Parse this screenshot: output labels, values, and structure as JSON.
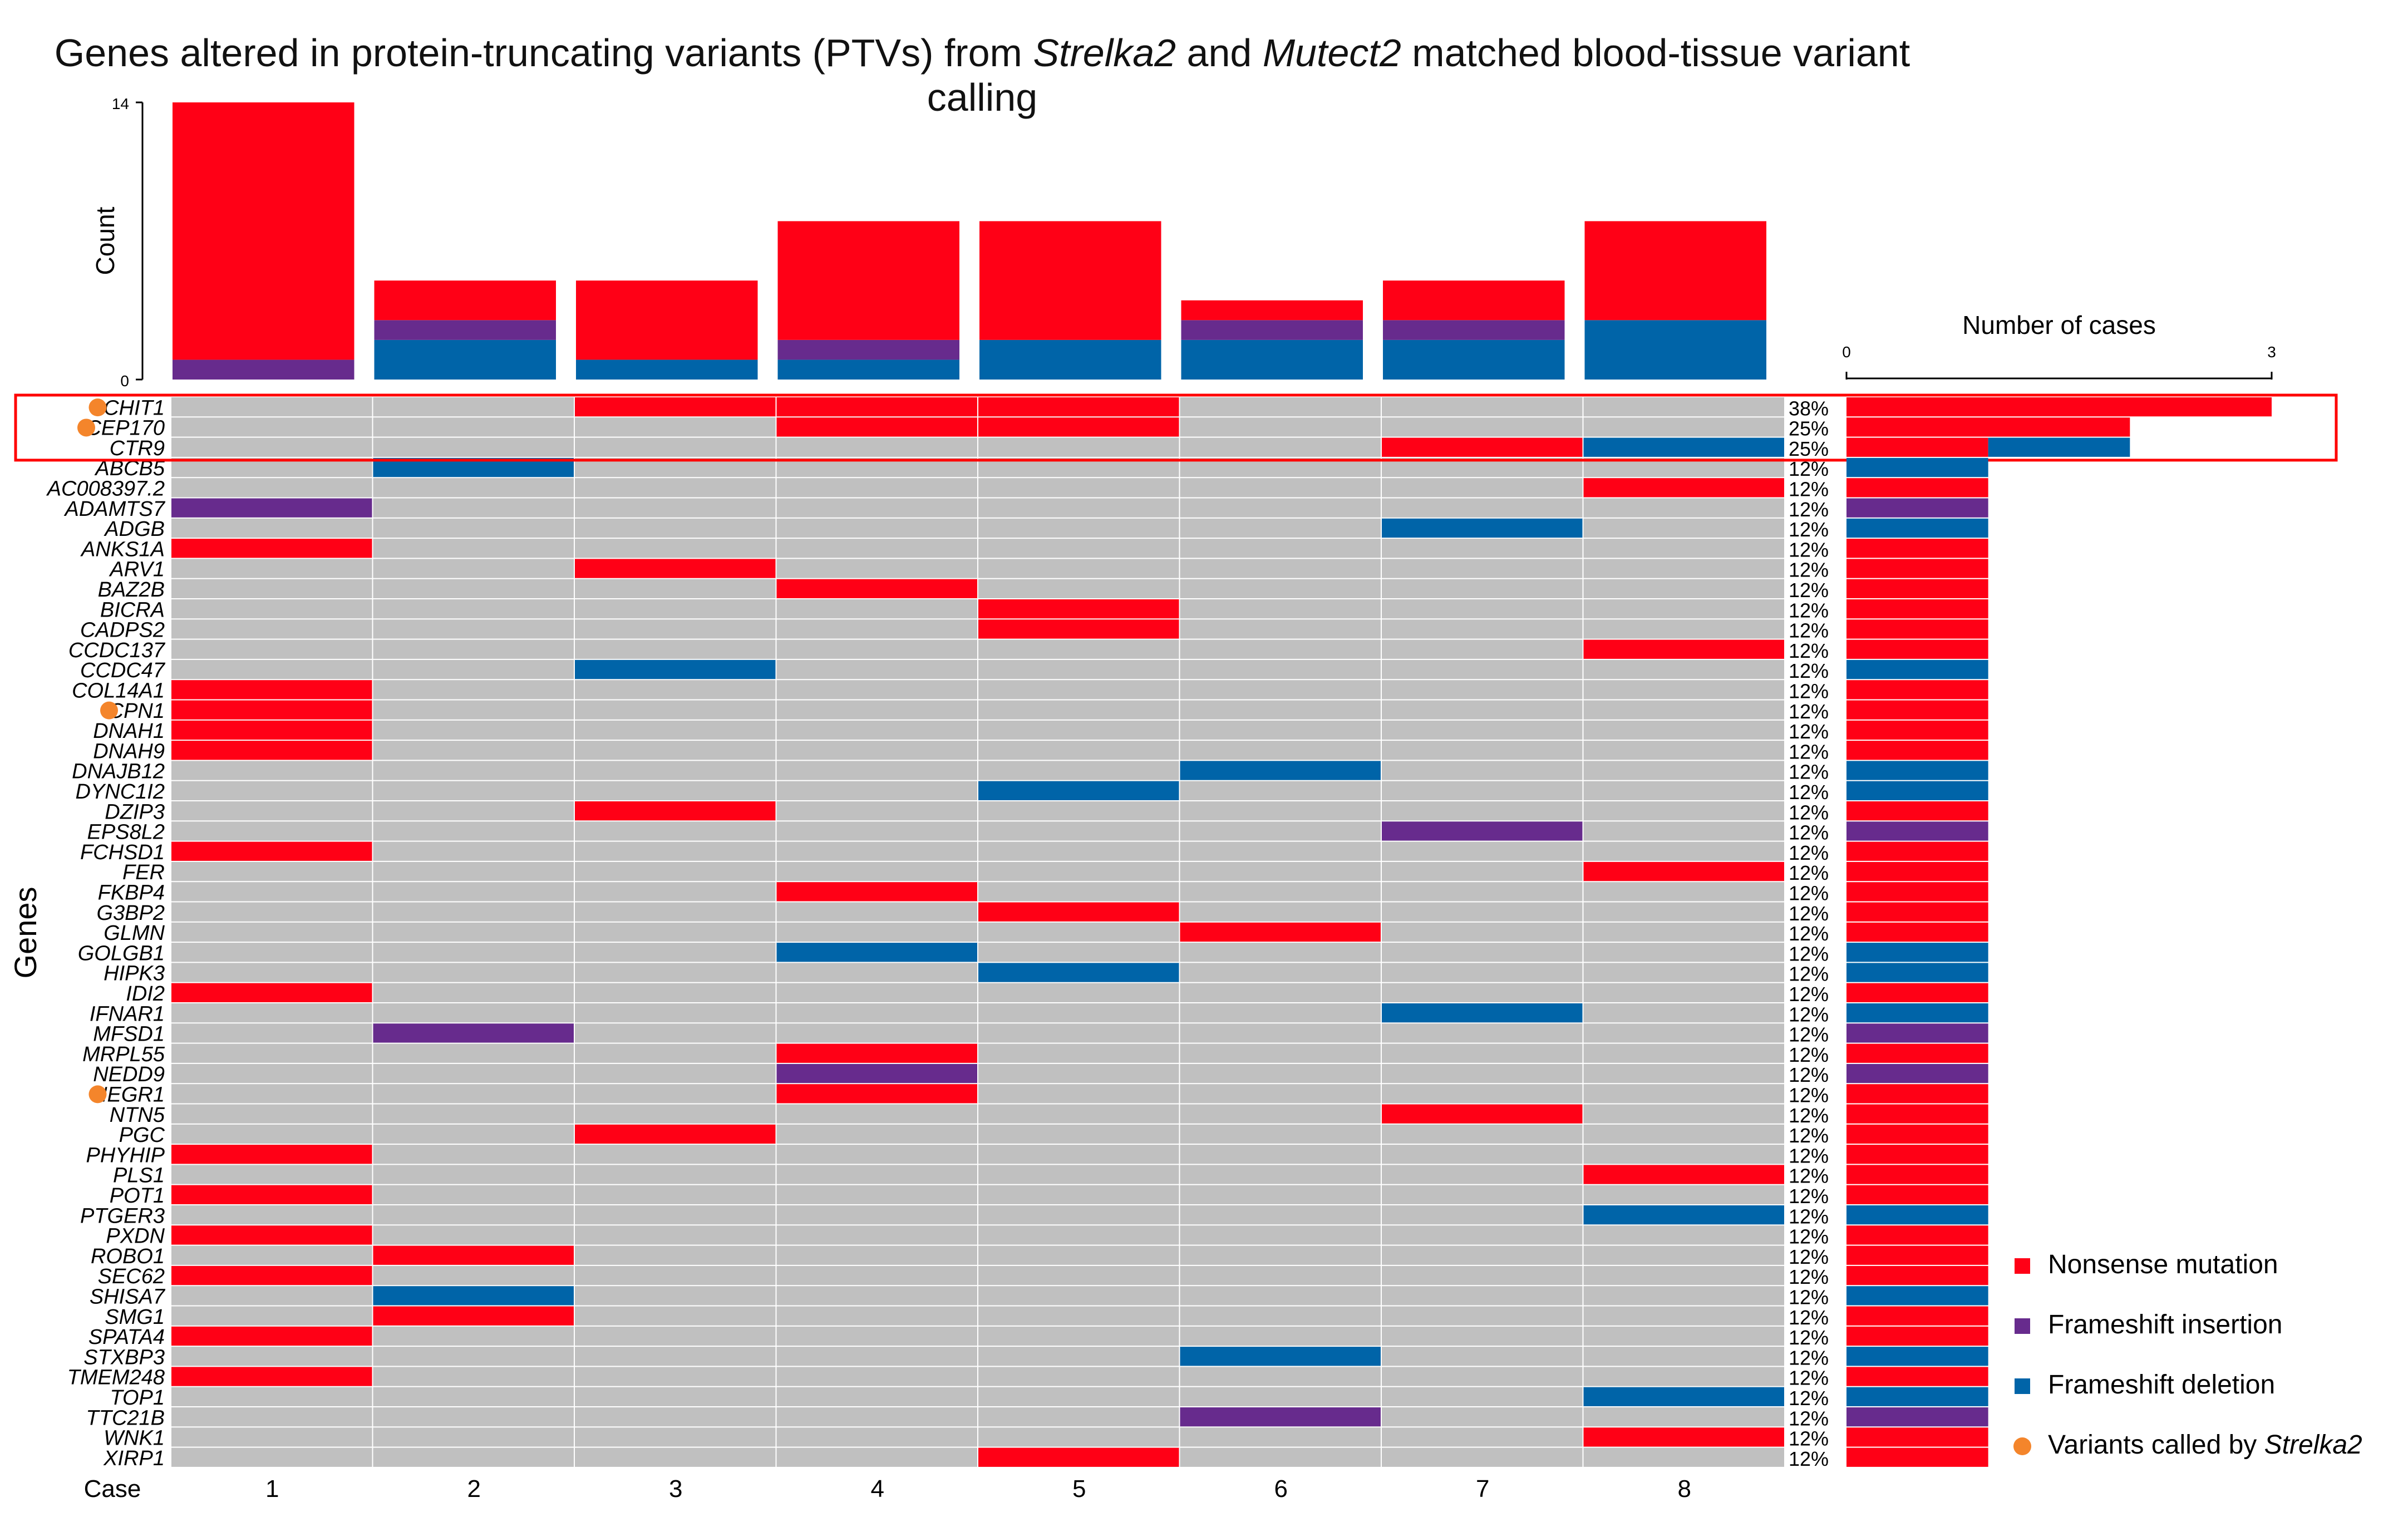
{
  "title_parts": [
    {
      "t": "Genes altered in protein-truncating variants (PTVs) from ",
      "i": false
    },
    {
      "t": "Strelka2",
      "i": true
    },
    {
      "t": " and ",
      "i": false
    },
    {
      "t": "Mutect2",
      "i": true
    },
    {
      "t": " matched blood-tissue variant calling",
      "i": false
    }
  ],
  "colors": {
    "nonsense": "#ff0016",
    "fs_ins": "#672b8d",
    "fs_del": "#0064a8",
    "empty": "#c0c0c0",
    "strelka": "#f4852b",
    "highlight": "#ff0000"
  },
  "legend": [
    {
      "key": "nonsense",
      "label_parts": [
        {
          "t": "Nonsense mutation",
          "i": false
        }
      ]
    },
    {
      "key": "fs_ins",
      "label_parts": [
        {
          "t": "Frameshift insertion",
          "i": false
        }
      ]
    },
    {
      "key": "fs_del",
      "label_parts": [
        {
          "t": "Frameshift deletion",
          "i": false
        }
      ]
    },
    {
      "key": "strelka",
      "dot": true,
      "label_parts": [
        {
          "t": "Variants called by ",
          "i": false
        },
        {
          "t": "Strelka2",
          "i": true
        }
      ]
    }
  ],
  "chart_data": [
    {
      "type": "bar",
      "name": "case-count-bars",
      "ylabel": "Count",
      "ylim": [
        0,
        14
      ],
      "yticks": [
        "0",
        "14"
      ],
      "categories": [
        "1",
        "2",
        "3",
        "4",
        "5",
        "6",
        "7",
        "8"
      ],
      "series": [
        {
          "name": "Frameshift deletion",
          "key": "fs_del",
          "values": [
            0,
            2,
            1,
            1,
            2,
            2,
            2,
            3
          ]
        },
        {
          "name": "Frameshift insertion",
          "key": "fs_ins",
          "values": [
            1,
            1,
            0,
            1,
            0,
            1,
            1,
            0
          ]
        },
        {
          "name": "Nonsense mutation",
          "key": "nonsense",
          "values": [
            13,
            2,
            4,
            6,
            6,
            1,
            2,
            5
          ]
        }
      ]
    },
    {
      "type": "heatmap",
      "name": "oncoprint",
      "ylabel": "Genes",
      "xlabel": "Case",
      "cases": [
        "1",
        "2",
        "3",
        "4",
        "5",
        "6",
        "7",
        "8"
      ],
      "highlighted_genes": [
        "CHIT1",
        "CEP170",
        "CTR9"
      ],
      "rows": [
        {
          "gene": "CHIT1",
          "pct": "38%",
          "strelka": true,
          "cells": [
            [
              "nonsense",
              3
            ],
            [
              "nonsense",
              4
            ],
            [
              "nonsense",
              5
            ]
          ]
        },
        {
          "gene": "CEP170",
          "pct": "25%",
          "strelka": true,
          "cells": [
            [
              "nonsense",
              4
            ],
            [
              "nonsense",
              5
            ]
          ]
        },
        {
          "gene": "CTR9",
          "pct": "25%",
          "cells": [
            [
              "nonsense",
              7
            ],
            [
              "fs_del",
              8
            ]
          ]
        },
        {
          "gene": "ABCB5",
          "pct": "12%",
          "cells": [
            [
              "fs_del",
              2
            ]
          ]
        },
        {
          "gene": "AC008397.2",
          "pct": "12%",
          "cells": [
            [
              "nonsense",
              8
            ]
          ]
        },
        {
          "gene": "ADAMTS7",
          "pct": "12%",
          "cells": [
            [
              "fs_ins",
              1
            ]
          ]
        },
        {
          "gene": "ADGB",
          "pct": "12%",
          "cells": [
            [
              "fs_del",
              7
            ]
          ]
        },
        {
          "gene": "ANKS1A",
          "pct": "12%",
          "cells": [
            [
              "nonsense",
              1
            ]
          ]
        },
        {
          "gene": "ARV1",
          "pct": "12%",
          "cells": [
            [
              "nonsense",
              3
            ]
          ]
        },
        {
          "gene": "BAZ2B",
          "pct": "12%",
          "cells": [
            [
              "nonsense",
              4
            ]
          ]
        },
        {
          "gene": "BICRA",
          "pct": "12%",
          "cells": [
            [
              "nonsense",
              5
            ]
          ]
        },
        {
          "gene": "CADPS2",
          "pct": "12%",
          "cells": [
            [
              "nonsense",
              5
            ]
          ]
        },
        {
          "gene": "CCDC137",
          "pct": "12%",
          "cells": [
            [
              "nonsense",
              8
            ]
          ]
        },
        {
          "gene": "CCDC47",
          "pct": "12%",
          "cells": [
            [
              "fs_del",
              3
            ]
          ]
        },
        {
          "gene": "COL14A1",
          "pct": "12%",
          "cells": [
            [
              "nonsense",
              1
            ]
          ]
        },
        {
          "gene": "CPN1",
          "pct": "12%",
          "strelka": true,
          "cells": [
            [
              "nonsense",
              1
            ]
          ]
        },
        {
          "gene": "DNAH1",
          "pct": "12%",
          "cells": [
            [
              "nonsense",
              1
            ]
          ]
        },
        {
          "gene": "DNAH9",
          "pct": "12%",
          "cells": [
            [
              "nonsense",
              1
            ]
          ]
        },
        {
          "gene": "DNAJB12",
          "pct": "12%",
          "cells": [
            [
              "fs_del",
              6
            ]
          ]
        },
        {
          "gene": "DYNC1I2",
          "pct": "12%",
          "cells": [
            [
              "fs_del",
              5
            ]
          ]
        },
        {
          "gene": "DZIP3",
          "pct": "12%",
          "cells": [
            [
              "nonsense",
              3
            ]
          ]
        },
        {
          "gene": "EPS8L2",
          "pct": "12%",
          "cells": [
            [
              "fs_ins",
              7
            ]
          ]
        },
        {
          "gene": "FCHSD1",
          "pct": "12%",
          "cells": [
            [
              "nonsense",
              1
            ]
          ]
        },
        {
          "gene": "FER",
          "pct": "12%",
          "cells": [
            [
              "nonsense",
              8
            ]
          ]
        },
        {
          "gene": "FKBP4",
          "pct": "12%",
          "cells": [
            [
              "nonsense",
              4
            ]
          ]
        },
        {
          "gene": "G3BP2",
          "pct": "12%",
          "cells": [
            [
              "nonsense",
              5
            ]
          ]
        },
        {
          "gene": "GLMN",
          "pct": "12%",
          "cells": [
            [
              "nonsense",
              6
            ]
          ]
        },
        {
          "gene": "GOLGB1",
          "pct": "12%",
          "cells": [
            [
              "fs_del",
              4
            ]
          ]
        },
        {
          "gene": "HIPK3",
          "pct": "12%",
          "cells": [
            [
              "fs_del",
              5
            ]
          ]
        },
        {
          "gene": "IDI2",
          "pct": "12%",
          "cells": [
            [
              "nonsense",
              1
            ]
          ]
        },
        {
          "gene": "IFNAR1",
          "pct": "12%",
          "cells": [
            [
              "fs_del",
              7
            ]
          ]
        },
        {
          "gene": "MFSD1",
          "pct": "12%",
          "cells": [
            [
              "fs_ins",
              2
            ]
          ]
        },
        {
          "gene": "MRPL55",
          "pct": "12%",
          "cells": [
            [
              "nonsense",
              4
            ]
          ]
        },
        {
          "gene": "NEDD9",
          "pct": "12%",
          "cells": [
            [
              "fs_ins",
              4
            ]
          ]
        },
        {
          "gene": "NEGR1",
          "pct": "12%",
          "strelka": true,
          "cells": [
            [
              "nonsense",
              4
            ]
          ]
        },
        {
          "gene": "NTN5",
          "pct": "12%",
          "cells": [
            [
              "nonsense",
              7
            ]
          ]
        },
        {
          "gene": "PGC",
          "pct": "12%",
          "cells": [
            [
              "nonsense",
              3
            ]
          ]
        },
        {
          "gene": "PHYHIP",
          "pct": "12%",
          "cells": [
            [
              "nonsense",
              1
            ]
          ]
        },
        {
          "gene": "PLS1",
          "pct": "12%",
          "cells": [
            [
              "nonsense",
              8
            ]
          ]
        },
        {
          "gene": "POT1",
          "pct": "12%",
          "cells": [
            [
              "nonsense",
              1
            ]
          ]
        },
        {
          "gene": "PTGER3",
          "pct": "12%",
          "cells": [
            [
              "fs_del",
              8
            ]
          ]
        },
        {
          "gene": "PXDN",
          "pct": "12%",
          "cells": [
            [
              "nonsense",
              1
            ]
          ]
        },
        {
          "gene": "ROBO1",
          "pct": "12%",
          "cells": [
            [
              "nonsense",
              2
            ]
          ]
        },
        {
          "gene": "SEC62",
          "pct": "12%",
          "cells": [
            [
              "nonsense",
              1
            ]
          ]
        },
        {
          "gene": "SHISA7",
          "pct": "12%",
          "cells": [
            [
              "fs_del",
              2
            ]
          ]
        },
        {
          "gene": "SMG1",
          "pct": "12%",
          "cells": [
            [
              "nonsense",
              2
            ]
          ]
        },
        {
          "gene": "SPATA4",
          "pct": "12%",
          "cells": [
            [
              "nonsense",
              1
            ]
          ]
        },
        {
          "gene": "STXBP3",
          "pct": "12%",
          "cells": [
            [
              "fs_del",
              6
            ]
          ]
        },
        {
          "gene": "TMEM248",
          "pct": "12%",
          "cells": [
            [
              "nonsense",
              1
            ]
          ]
        },
        {
          "gene": "TOP1",
          "pct": "12%",
          "cells": [
            [
              "fs_del",
              8
            ]
          ]
        },
        {
          "gene": "TTC21B",
          "pct": "12%",
          "cells": [
            [
              "fs_ins",
              6
            ]
          ]
        },
        {
          "gene": "WNK1",
          "pct": "12%",
          "cells": [
            [
              "nonsense",
              8
            ]
          ]
        },
        {
          "gene": "XIRP1",
          "pct": "12%",
          "cells": [
            [
              "nonsense",
              5
            ]
          ]
        }
      ]
    },
    {
      "type": "bar",
      "name": "number-of-cases",
      "title": "Number of cases",
      "orientation": "horizontal",
      "xlim": [
        0,
        3
      ],
      "xticks": [
        "0",
        "3"
      ],
      "stacks": [
        {
          "gene": "CHIT1",
          "segments": [
            [
              "nonsense",
              3
            ]
          ]
        },
        {
          "gene": "CEP170",
          "segments": [
            [
              "nonsense",
              2
            ]
          ]
        },
        {
          "gene": "CTR9",
          "segments": [
            [
              "nonsense",
              1
            ],
            [
              "fs_del",
              1
            ]
          ]
        }
      ],
      "default_count": 1
    }
  ]
}
